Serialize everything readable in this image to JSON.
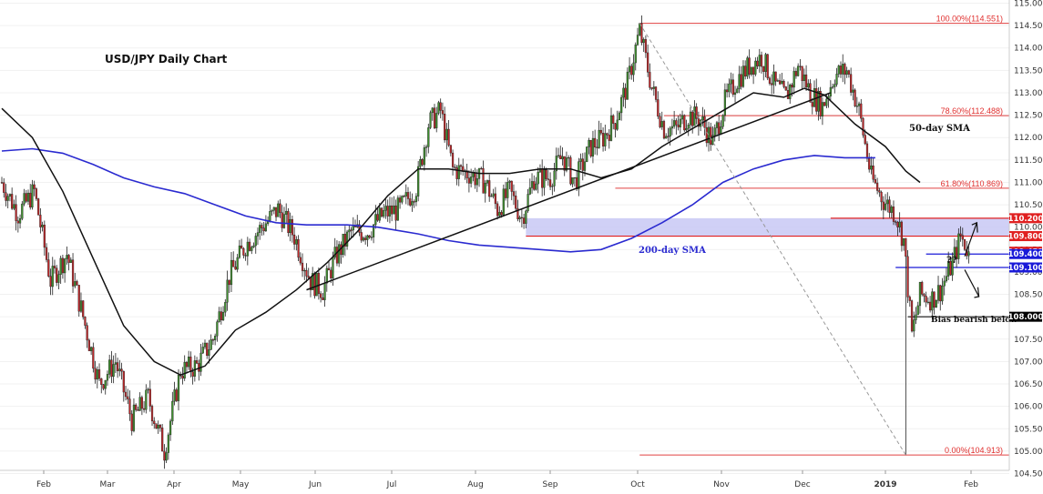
{
  "chart_data": {
    "type": "candlestick",
    "title": "USD/JPY Daily Chart",
    "ylim": [
      104.5,
      115.0
    ],
    "y_ticks": [
      "104.500",
      "105.000",
      "105.500",
      "106.000",
      "106.500",
      "107.000",
      "107.500",
      "108.000",
      "108.500",
      "109.000",
      "109.500",
      "110.000",
      "110.500",
      "111.000",
      "111.500",
      "112.000",
      "112.500",
      "113.000",
      "113.500",
      "114.000",
      "114.500",
      "115.000"
    ],
    "x_months": [
      "Feb",
      "Mar",
      "Apr",
      "May",
      "Jun",
      "Jul",
      "Aug",
      "Sep",
      "Oct",
      "Nov",
      "Dec",
      "2019",
      "Feb"
    ],
    "colors": {
      "up": "#3f8f2f",
      "down": "#c0282a",
      "sma50": "#111111",
      "sma200": "#2a2ad0",
      "fib": "#e04040",
      "zone": "#c8c8f4"
    },
    "anchors": [
      [
        0,
        111.0
      ],
      [
        8,
        110.3
      ],
      [
        16,
        110.8
      ],
      [
        24,
        108.8
      ],
      [
        32,
        109.4
      ],
      [
        40,
        108.0
      ],
      [
        48,
        106.5
      ],
      [
        56,
        107.0
      ],
      [
        64,
        105.7
      ],
      [
        72,
        106.2
      ],
      [
        80,
        105.0
      ],
      [
        88,
        106.8
      ],
      [
        96,
        106.9
      ],
      [
        104,
        107.5
      ],
      [
        112,
        108.9
      ],
      [
        120,
        109.6
      ],
      [
        128,
        110.0
      ],
      [
        136,
        110.4
      ],
      [
        144,
        109.8
      ],
      [
        152,
        108.8
      ],
      [
        158,
        108.6
      ],
      [
        164,
        109.3
      ],
      [
        172,
        109.9
      ],
      [
        180,
        109.9
      ],
      [
        188,
        110.3
      ],
      [
        196,
        110.4
      ],
      [
        204,
        110.9
      ],
      [
        210,
        112.3
      ],
      [
        216,
        112.6
      ],
      [
        222,
        111.3
      ],
      [
        230,
        111.2
      ],
      [
        238,
        111.0
      ],
      [
        244,
        110.4
      ],
      [
        250,
        110.8
      ],
      [
        256,
        110.2
      ],
      [
        262,
        111.1
      ],
      [
        270,
        111.1
      ],
      [
        276,
        111.6
      ],
      [
        282,
        111.0
      ],
      [
        290,
        111.8
      ],
      [
        296,
        112.0
      ],
      [
        302,
        112.4
      ],
      [
        308,
        113.2
      ],
      [
        314,
        114.4
      ],
      [
        320,
        113.1
      ],
      [
        326,
        112.2
      ],
      [
        332,
        112.2
      ],
      [
        338,
        112.5
      ],
      [
        344,
        112.4
      ],
      [
        350,
        111.9
      ],
      [
        356,
        112.8
      ],
      [
        362,
        113.3
      ],
      [
        368,
        113.6
      ],
      [
        374,
        113.8
      ],
      [
        380,
        113.2
      ],
      [
        386,
        112.9
      ],
      [
        392,
        113.6
      ],
      [
        398,
        113.0
      ],
      [
        404,
        112.7
      ],
      [
        410,
        113.4
      ],
      [
        416,
        113.5
      ],
      [
        422,
        112.6
      ],
      [
        428,
        111.1
      ],
      [
        434,
        110.6
      ],
      [
        440,
        110.3
      ],
      [
        444,
        109.7
      ],
      [
        448,
        107.6
      ],
      [
        452,
        108.5
      ],
      [
        458,
        108.4
      ],
      [
        462,
        108.6
      ],
      [
        468,
        109.2
      ],
      [
        472,
        109.8
      ],
      [
        476,
        109.452
      ]
    ],
    "sma50": [
      [
        0,
        112.65
      ],
      [
        15,
        112.0
      ],
      [
        30,
        110.8
      ],
      [
        45,
        109.3
      ],
      [
        60,
        107.8
      ],
      [
        75,
        107.0
      ],
      [
        88,
        106.7
      ],
      [
        100,
        106.9
      ],
      [
        115,
        107.7
      ],
      [
        130,
        108.1
      ],
      [
        145,
        108.6
      ],
      [
        160,
        109.2
      ],
      [
        175,
        109.9
      ],
      [
        190,
        110.7
      ],
      [
        205,
        111.3
      ],
      [
        220,
        111.3
      ],
      [
        235,
        111.2
      ],
      [
        250,
        111.2
      ],
      [
        265,
        111.3
      ],
      [
        280,
        111.3
      ],
      [
        295,
        111.1
      ],
      [
        310,
        111.3
      ],
      [
        325,
        111.8
      ],
      [
        340,
        112.2
      ],
      [
        355,
        112.6
      ],
      [
        370,
        113.0
      ],
      [
        385,
        112.9
      ],
      [
        395,
        113.1
      ],
      [
        405,
        112.95
      ],
      [
        420,
        112.3
      ],
      [
        435,
        111.8
      ],
      [
        445,
        111.25
      ],
      [
        452,
        111.0
      ]
    ],
    "sma200": [
      [
        0,
        111.7
      ],
      [
        15,
        111.75
      ],
      [
        30,
        111.65
      ],
      [
        45,
        111.4
      ],
      [
        60,
        111.1
      ],
      [
        75,
        110.9
      ],
      [
        90,
        110.75
      ],
      [
        105,
        110.5
      ],
      [
        120,
        110.25
      ],
      [
        135,
        110.1
      ],
      [
        150,
        110.05
      ],
      [
        170,
        110.05
      ],
      [
        185,
        110.0
      ],
      [
        205,
        109.85
      ],
      [
        220,
        109.7
      ],
      [
        235,
        109.6
      ],
      [
        250,
        109.55
      ],
      [
        265,
        109.5
      ],
      [
        280,
        109.45
      ],
      [
        295,
        109.5
      ],
      [
        310,
        109.75
      ],
      [
        325,
        110.1
      ],
      [
        340,
        110.5
      ],
      [
        355,
        111.0
      ],
      [
        370,
        111.3
      ],
      [
        385,
        111.5
      ],
      [
        400,
        111.6
      ],
      [
        415,
        111.55
      ],
      [
        430,
        111.55
      ]
    ],
    "fib_levels": [
      {
        "label": "100.00%(114.551)",
        "value": 114.551
      },
      {
        "label": "78.60%(112.488)",
        "value": 112.488
      },
      {
        "label": "61.80%(110.869)",
        "value": 110.869
      },
      {
        "label": "0.00%(104.913)",
        "value": 104.913
      }
    ],
    "price_tags": [
      {
        "label": "110.200",
        "value": 110.2,
        "color": "#e02020"
      },
      {
        "label": "109.800",
        "value": 109.8,
        "color": "#e02020"
      },
      {
        "label": "109.452",
        "value": 109.452,
        "color": "#e02020"
      },
      {
        "label": "109.400",
        "value": 109.4,
        "color": "#1a1ad8"
      },
      {
        "label": "109.100",
        "value": 109.1,
        "color": "#1a1ad8"
      },
      {
        "label": "108.000",
        "value": 108.0,
        "color": "#000000"
      }
    ],
    "zone": [
      109.8,
      110.2
    ],
    "trendline": [
      [
        150,
        108.6
      ],
      [
        408,
        113.0
      ]
    ],
    "annotations": {
      "sma50": "50-day SMA",
      "sma200": "200-day SMA",
      "bias": "Bias bearish below",
      "question": "??"
    }
  }
}
